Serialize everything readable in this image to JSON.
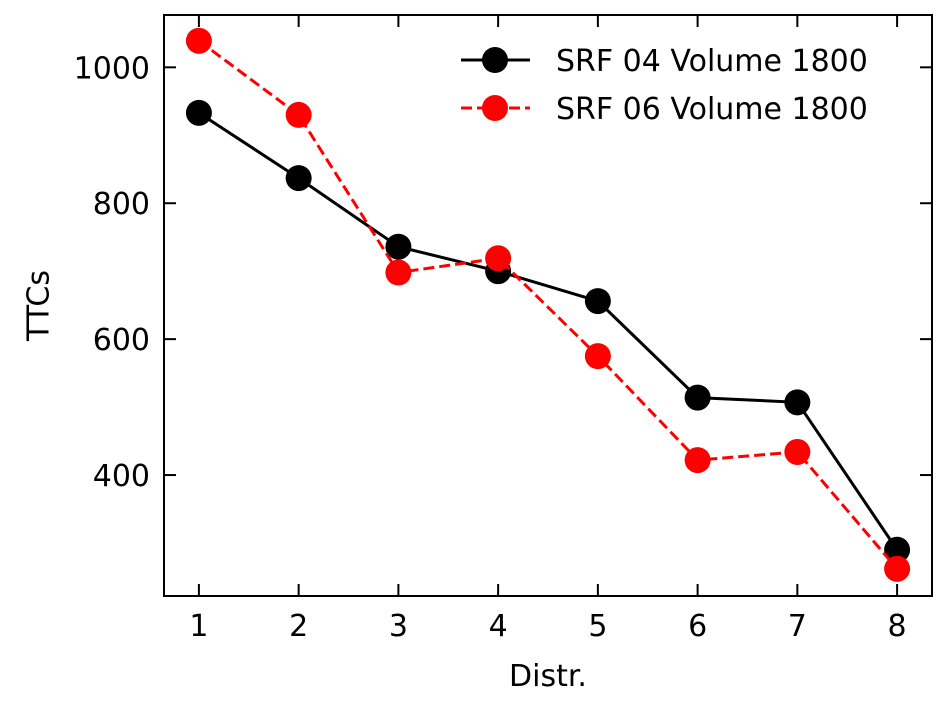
{
  "chart_data": {
    "type": "line",
    "title": "",
    "xlabel": "Distr.",
    "ylabel": "TTCs",
    "x": [
      1,
      2,
      3,
      4,
      5,
      6,
      7,
      8
    ],
    "xticks": [
      "1",
      "2",
      "3",
      "4",
      "5",
      "6",
      "7",
      "8"
    ],
    "yticks": [
      "400",
      "600",
      "800",
      "1000"
    ],
    "xlim": [
      0.65,
      8.35
    ],
    "ylim": [
      222,
      1077
    ],
    "grid": false,
    "legend_position": "top-right",
    "series": [
      {
        "name": "SRF 04 Volume 1800",
        "values": [
          933,
          837,
          736,
          700,
          656,
          514,
          507,
          290
        ],
        "color": "#000000",
        "line_style": "solid",
        "marker": "circle"
      },
      {
        "name": "SRF 06 Volume 1800",
        "values": [
          1039,
          930,
          698,
          719,
          575,
          422,
          434,
          262
        ],
        "color": "#ff0000",
        "line_style": "dashed",
        "marker": "circle"
      }
    ]
  }
}
